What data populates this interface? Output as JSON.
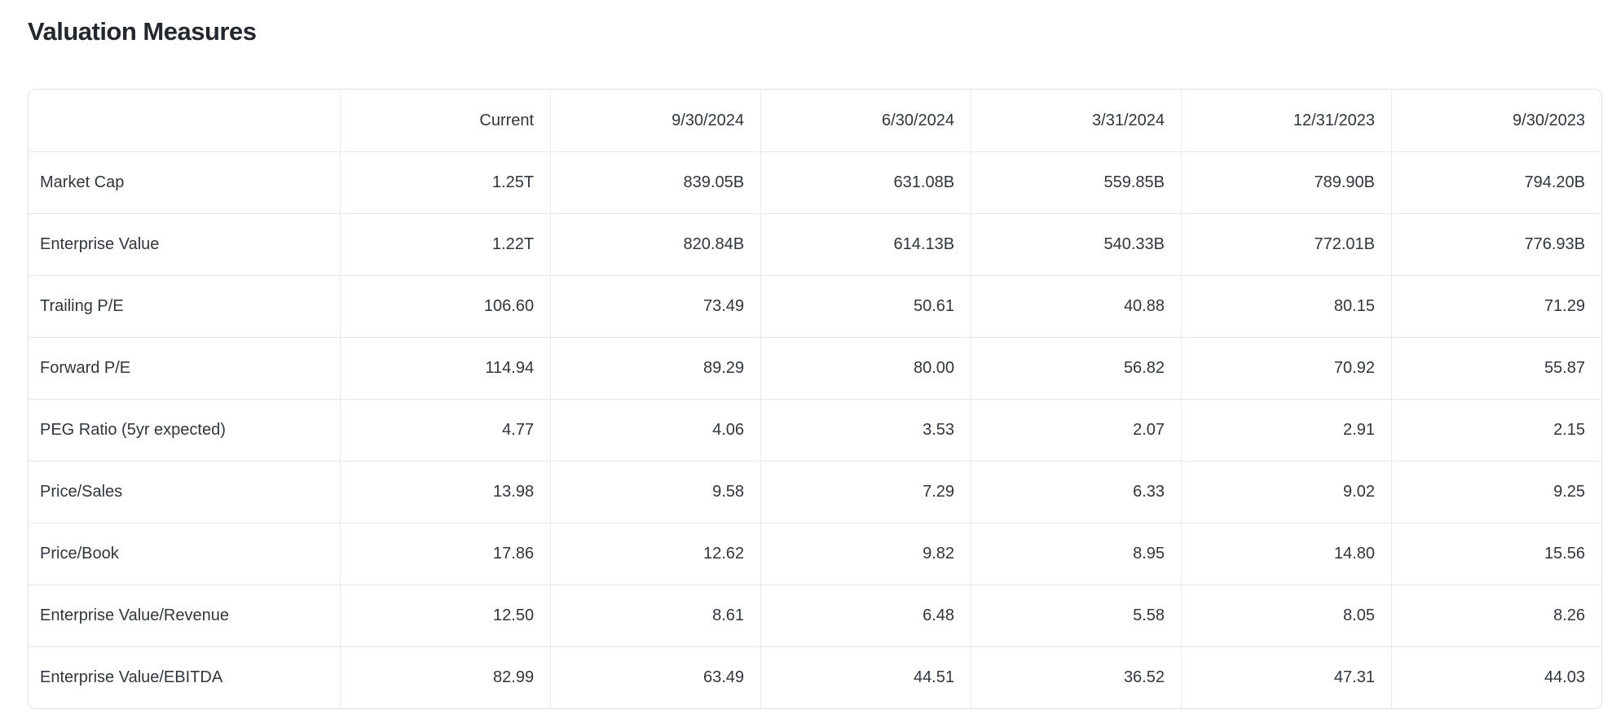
{
  "title": "Valuation Measures",
  "colors": {
    "background": "#ffffff",
    "title_text": "#23282e",
    "body_text": "#2f363d",
    "table_border": "#dde1e7",
    "grid_line": "#e6e8ec"
  },
  "table": {
    "columns": [
      "",
      "Current",
      "9/30/2024",
      "6/30/2024",
      "3/31/2024",
      "12/31/2023",
      "9/30/2023"
    ],
    "rows": [
      {
        "label": "Market Cap",
        "values": [
          "1.25T",
          "839.05B",
          "631.08B",
          "559.85B",
          "789.90B",
          "794.20B"
        ]
      },
      {
        "label": "Enterprise Value",
        "values": [
          "1.22T",
          "820.84B",
          "614.13B",
          "540.33B",
          "772.01B",
          "776.93B"
        ]
      },
      {
        "label": "Trailing P/E",
        "values": [
          "106.60",
          "73.49",
          "50.61",
          "40.88",
          "80.15",
          "71.29"
        ]
      },
      {
        "label": "Forward P/E",
        "values": [
          "114.94",
          "89.29",
          "80.00",
          "56.82",
          "70.92",
          "55.87"
        ]
      },
      {
        "label": "PEG Ratio (5yr expected)",
        "values": [
          "4.77",
          "4.06",
          "3.53",
          "2.07",
          "2.91",
          "2.15"
        ]
      },
      {
        "label": "Price/Sales",
        "values": [
          "13.98",
          "9.58",
          "7.29",
          "6.33",
          "9.02",
          "9.25"
        ]
      },
      {
        "label": "Price/Book",
        "values": [
          "17.86",
          "12.62",
          "9.82",
          "8.95",
          "14.80",
          "15.56"
        ]
      },
      {
        "label": "Enterprise Value/Revenue",
        "values": [
          "12.50",
          "8.61",
          "6.48",
          "5.58",
          "8.05",
          "8.26"
        ]
      },
      {
        "label": "Enterprise Value/EBITDA",
        "values": [
          "82.99",
          "63.49",
          "44.51",
          "36.52",
          "47.31",
          "44.03"
        ]
      }
    ]
  }
}
